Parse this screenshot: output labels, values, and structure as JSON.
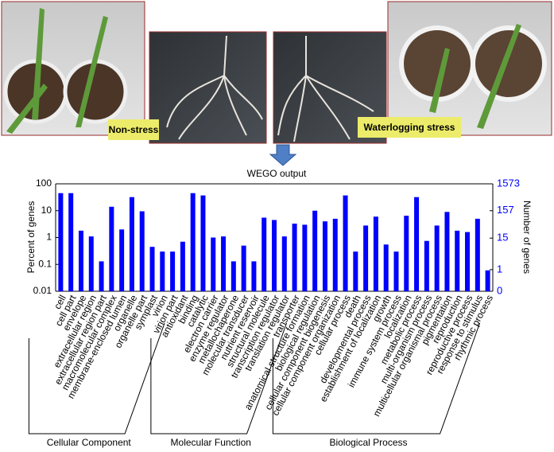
{
  "photos": {
    "labels": [
      "Non-stress",
      "Waterlogging stress"
    ]
  },
  "chart_data": {
    "type": "bar",
    "title": "WEGO output",
    "y_label": "Percent of genes",
    "y2_label": "Number of genes",
    "color": "#0000ff",
    "y2_color": "#0000ff",
    "log_scale": true,
    "ylim": [
      0.01,
      100
    ],
    "yticks": [
      0.01,
      0.1,
      1,
      10,
      100
    ],
    "y2lim": [
      0.1573,
      1573
    ],
    "y2ticks": [
      {
        "value": 0.1573,
        "label": "0"
      },
      1,
      15,
      157,
      1573
    ],
    "groups": [
      {
        "name": "Cellular Component",
        "categories": [
          "cell",
          "cell part",
          "envelope",
          "extracellular region",
          "extracellular region part",
          "macromolecular complex",
          "membrane-enclosed lumen",
          "organelle",
          "organelle part",
          "symplast",
          "virion",
          "virion part"
        ],
        "values": [
          45,
          45,
          1.8,
          1.1,
          0.13,
          14,
          2,
          32,
          9.5,
          0.45,
          0.3,
          0.3
        ]
      },
      {
        "name": "Molecular Function",
        "categories": [
          "antioxidant",
          "binding",
          "catalytic",
          "electron carrier",
          "enzyme regulator",
          "metallochaperone",
          "molecular transducer",
          "nutrient reservoir",
          "structural molecule",
          "transcription regulator",
          "translation regulator",
          "transporter"
        ],
        "values": [
          0.7,
          45,
          37,
          1,
          1.1,
          0.13,
          0.5,
          0.13,
          5.5,
          4.5,
          1.1,
          3.3
        ]
      },
      {
        "name": "Biological Process",
        "categories": [
          "anatomical structure formation",
          "biological regulation",
          "cellular component biogenesis",
          "cellular component organization",
          "cellular process",
          "death",
          "developmental process",
          "establishment of localization",
          "growth",
          "immune system process",
          "localization",
          "metabolic process",
          "multi-organism process",
          "multicellular organismal process",
          "pigmentation",
          "reproduction",
          "reproductive process",
          "response to stimulus",
          "rhythmic process"
        ],
        "values": [
          3,
          10,
          4,
          5,
          37,
          0.3,
          2.8,
          6,
          0.55,
          0.3,
          6.5,
          32,
          0.75,
          2.8,
          9,
          1.8,
          1.6,
          5,
          0.06
        ]
      }
    ]
  }
}
